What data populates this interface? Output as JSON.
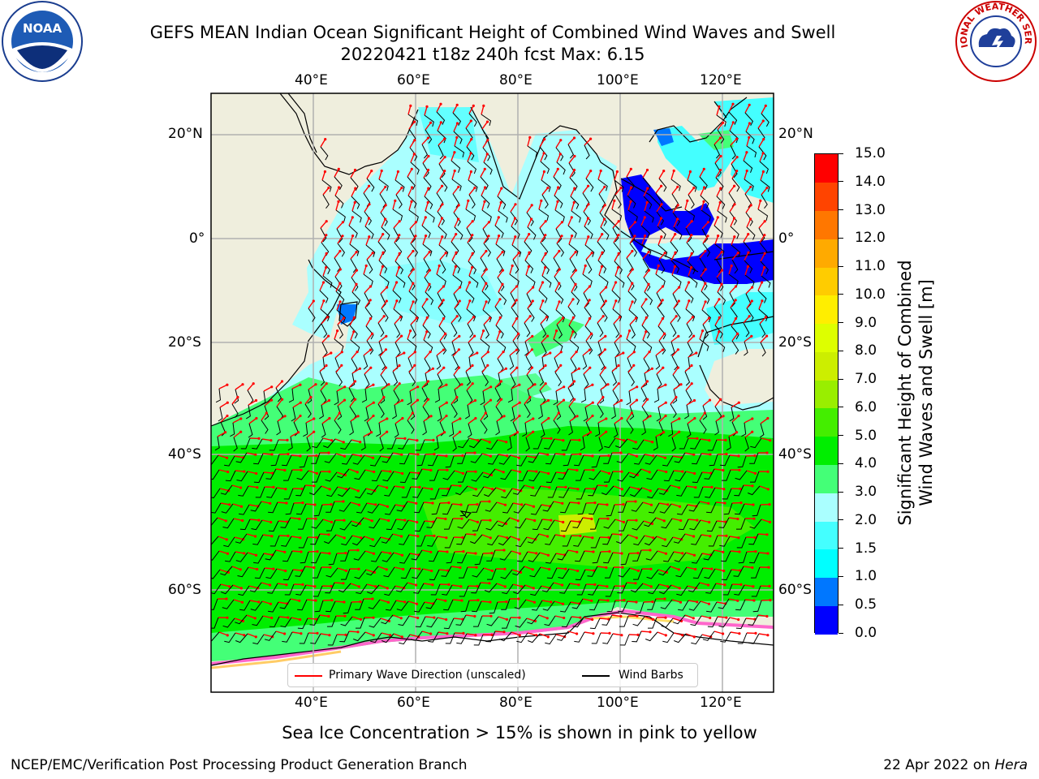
{
  "header": {
    "title_line1": "GEFS MEAN Indian Ocean Significant Height of Combined Wind Waves and Swell",
    "title_line2": "20220421 t18z 240h fcst   Max: 6.15"
  },
  "logos": {
    "left": {
      "name": "noaa-logo",
      "text": "NOAA"
    },
    "right": {
      "name": "national-weather-service-logo",
      "text": "NATIONAL WEATHER SERVICE"
    }
  },
  "map": {
    "lon_labels": [
      "40°E",
      "60°E",
      "80°E",
      "100°E",
      "120°E"
    ],
    "lat_labels": [
      "20°N",
      "0°",
      "20°S",
      "40°S",
      "60°S"
    ],
    "colors": {
      "land": "#efeedd",
      "ice": "#ffffff",
      "arrow": "#ff0000",
      "barb": "#000000",
      "grid": "#b0b0b0"
    }
  },
  "legend": {
    "wave_label": "Primary Wave Direction (unscaled)",
    "wind_label": "Wind Barbs"
  },
  "colorbar": {
    "title_line1": "Significant Height of Combined",
    "title_line2": "Wind Waves and Swell [m]",
    "ticks": [
      "0.0",
      "0.5",
      "1.0",
      "1.5",
      "2.0",
      "3.0",
      "4.0",
      "5.0",
      "6.0",
      "7.0",
      "8.0",
      "9.0",
      "10.0",
      "11.0",
      "12.0",
      "13.0",
      "14.0",
      "15.0"
    ],
    "colors": [
      "#0000ff",
      "#0077ff",
      "#00ffff",
      "#44ffff",
      "#aaffff",
      "#44ff77",
      "#00ee00",
      "#44ee00",
      "#99ee00",
      "#ccee00",
      "#ddff00",
      "#ffee00",
      "#ffcc00",
      "#ffaa00",
      "#ff7700",
      "#ff4400",
      "#ff0000"
    ]
  },
  "footer": {
    "note": "Sea Ice Concentration > 15% is shown in pink to yellow",
    "credit_left": "NCEP/EMC/Verification Post Processing Product Generation Branch",
    "credit_right_date": "22 Apr 2022 on ",
    "credit_right_host": "Hera"
  }
}
